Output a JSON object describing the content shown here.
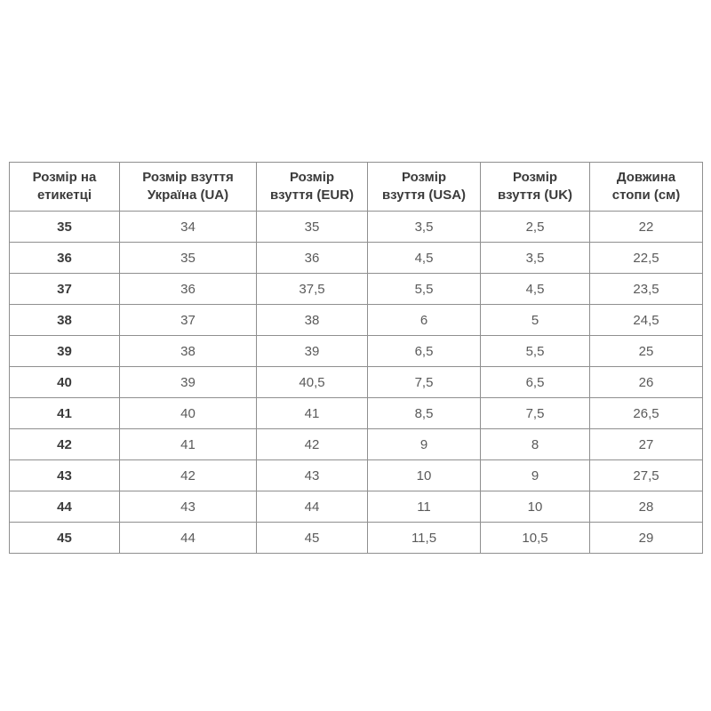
{
  "table": {
    "columns": [
      {
        "label": "Розмір на\nетикетці"
      },
      {
        "label": "Розмір взуття\nУкраїна (UA)"
      },
      {
        "label": "Розмір\nвзуття (EUR)"
      },
      {
        "label": "Розмір\nвзуття (USA)"
      },
      {
        "label": "Розмір\nвзуття (UK)"
      },
      {
        "label": "Довжина\nстопи (см)"
      }
    ],
    "rows": [
      [
        "35",
        "34",
        "35",
        "3,5",
        "2,5",
        "22"
      ],
      [
        "36",
        "35",
        "36",
        "4,5",
        "3,5",
        "22,5"
      ],
      [
        "37",
        "36",
        "37,5",
        "5,5",
        "4,5",
        "23,5"
      ],
      [
        "38",
        "37",
        "38",
        "6",
        "5",
        "24,5"
      ],
      [
        "39",
        "38",
        "39",
        "6,5",
        "5,5",
        "25"
      ],
      [
        "40",
        "39",
        "40,5",
        "7,5",
        "6,5",
        "26"
      ],
      [
        "41",
        "40",
        "41",
        "8,5",
        "7,5",
        "26,5"
      ],
      [
        "42",
        "41",
        "42",
        "9",
        "8",
        "27"
      ],
      [
        "43",
        "42",
        "43",
        "10",
        "9",
        "27,5"
      ],
      [
        "44",
        "43",
        "44",
        "11",
        "10",
        "28"
      ],
      [
        "45",
        "44",
        "45",
        "11,5",
        "10,5",
        "29"
      ]
    ],
    "colors": {
      "border_outer": "#6e6e6e",
      "border_inner": "#8f8f8f",
      "header_text": "#3b3b3b",
      "cell_text": "#5a5a5a",
      "background": "#ffffff"
    }
  }
}
